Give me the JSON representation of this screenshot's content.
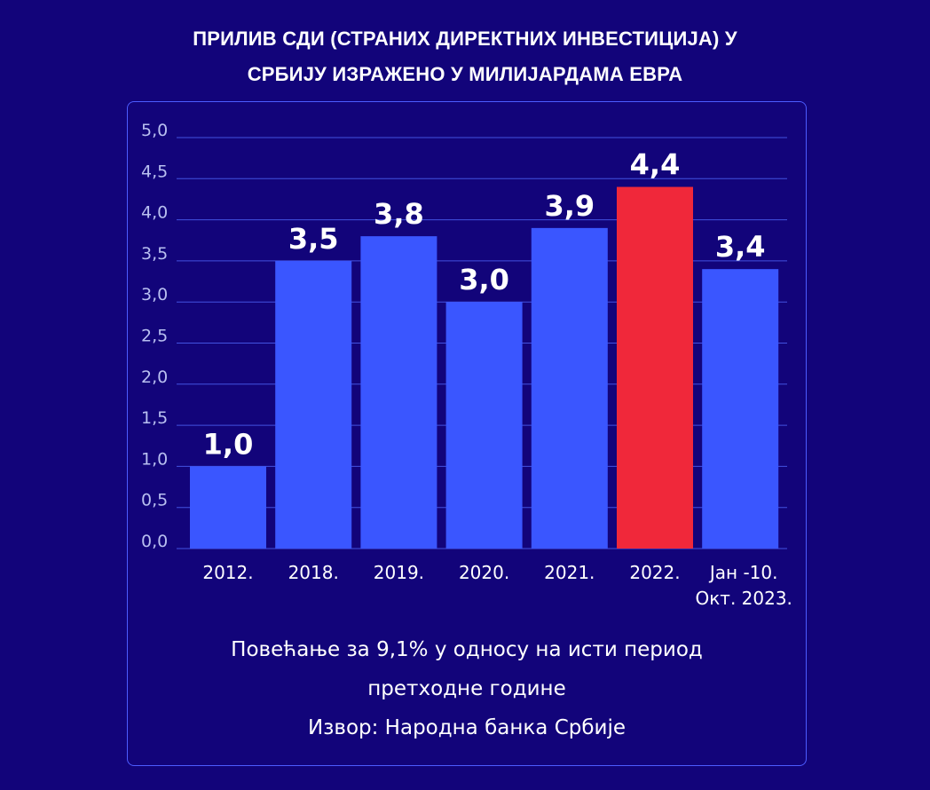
{
  "chart_data": {
    "type": "bar",
    "title_lines": [
      "ПРИЛИВ СДИ (СТРАНИХ ДИРЕКТНИХ ИНВЕСТИЦИЈА) У",
      "СРБИЈУ ИЗРАЖЕНО У МИЛИЈАРДАМА ЕВРА"
    ],
    "categories": [
      [
        "2012."
      ],
      [
        "2018."
      ],
      [
        "2019."
      ],
      [
        "2020."
      ],
      [
        "2021."
      ],
      [
        "2022."
      ],
      [
        "Јан -10.",
        "Окт. 2023."
      ]
    ],
    "values": [
      1.0,
      3.5,
      3.8,
      3.0,
      3.9,
      4.4,
      3.4
    ],
    "value_labels": [
      "1,0",
      "3,5",
      "3,8",
      "3,0",
      "3,9",
      "4,4",
      "3,4"
    ],
    "y_ticks": [
      {
        "value": 0.0,
        "label": "0,0"
      },
      {
        "value": 0.5,
        "label": "0,5"
      },
      {
        "value": 1.0,
        "label": "1,0"
      },
      {
        "value": 1.5,
        "label": "1,5"
      },
      {
        "value": 2.0,
        "label": "2,0"
      },
      {
        "value": 2.5,
        "label": "2,5"
      },
      {
        "value": 3.0,
        "label": "3,0"
      },
      {
        "value": 3.5,
        "label": "3,5"
      },
      {
        "value": 4.0,
        "label": "4,0"
      },
      {
        "value": 4.5,
        "label": "4,5"
      },
      {
        "value": 5.0,
        "label": "5,0"
      }
    ],
    "ylim": [
      0,
      5
    ],
    "grid": true,
    "highlight_index": 5,
    "bar_color": "#3a56ff",
    "highlight_color": "#f0283a",
    "grid_color": "#4252e0",
    "tick_label_color": "#b8bff0"
  },
  "notes": {
    "line1": "Повећање за 9,1% у односу на исти период",
    "line2": "претходне године",
    "source": "Извор: Народна банка Србије"
  },
  "colors": {
    "background": "#12047a",
    "panel_border": "#4c5cff"
  }
}
